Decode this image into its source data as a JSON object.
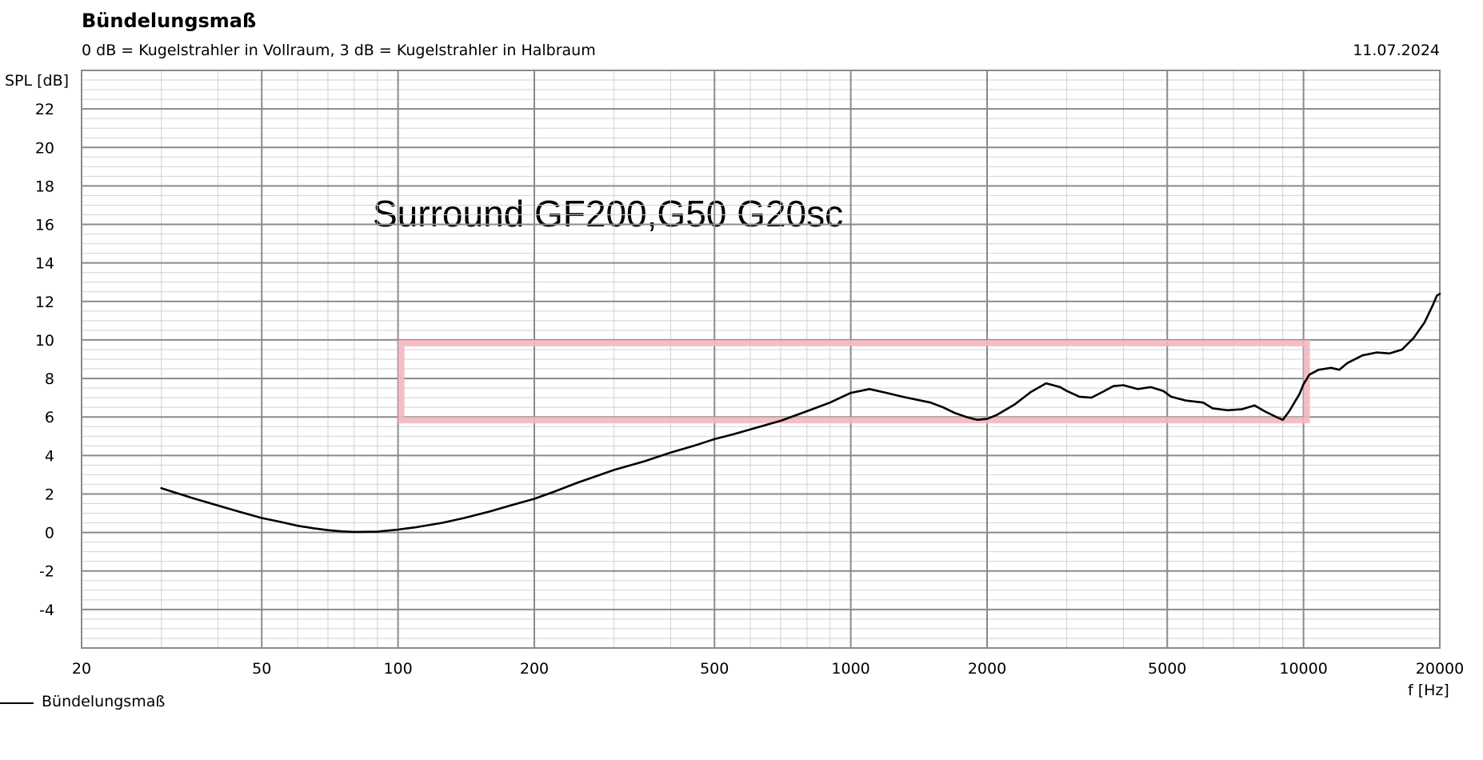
{
  "chart_data": {
    "type": "line",
    "title": "Bündelungsmaß",
    "subtitle": "0 dB = Kugelstrahler in Vollraum, 3 dB = Kugelstrahler in Halbraum",
    "date": "11.07.2024",
    "annotation": "Surround GF200,G50 G20sc",
    "xlabel": "f [Hz]",
    "ylabel": "SPL [dB]",
    "xscale": "log",
    "xlim": [
      20,
      20000
    ],
    "ylim": [
      -6,
      24
    ],
    "grid": true,
    "legend_placement": "bottom-left",
    "x_ticks": [
      20,
      50,
      100,
      200,
      500,
      1000,
      2000,
      5000,
      10000,
      20000
    ],
    "x_tick_labels": [
      "20",
      "50",
      "100",
      "200",
      "500",
      "1000",
      "2000",
      "5000",
      "10000",
      "20000"
    ],
    "y_ticks": [
      -4,
      -2,
      0,
      2,
      4,
      6,
      8,
      10,
      12,
      14,
      16,
      18,
      20,
      22
    ],
    "y_tick_labels": [
      "-4",
      "-2",
      "0",
      "2",
      "4",
      "6",
      "8",
      "10",
      "12",
      "14",
      "16",
      "18",
      "20",
      "22"
    ],
    "target_box": {
      "x": [
        100,
        10000
      ],
      "y": [
        6,
        10
      ],
      "color": "#f4b6bf"
    },
    "series": [
      {
        "name": "Bündelungsmaß",
        "color": "#000000",
        "points": [
          [
            30,
            2.3
          ],
          [
            35,
            1.8
          ],
          [
            40,
            1.4
          ],
          [
            45,
            1.05
          ],
          [
            50,
            0.75
          ],
          [
            55,
            0.55
          ],
          [
            60,
            0.35
          ],
          [
            65,
            0.22
          ],
          [
            70,
            0.12
          ],
          [
            75,
            0.06
          ],
          [
            80,
            0.03
          ],
          [
            90,
            0.04
          ],
          [
            100,
            0.15
          ],
          [
            110,
            0.28
          ],
          [
            125,
            0.5
          ],
          [
            140,
            0.75
          ],
          [
            160,
            1.1
          ],
          [
            180,
            1.45
          ],
          [
            200,
            1.75
          ],
          [
            220,
            2.1
          ],
          [
            250,
            2.6
          ],
          [
            280,
            3.0
          ],
          [
            300,
            3.25
          ],
          [
            350,
            3.7
          ],
          [
            400,
            4.15
          ],
          [
            450,
            4.5
          ],
          [
            500,
            4.85
          ],
          [
            550,
            5.1
          ],
          [
            600,
            5.35
          ],
          [
            700,
            5.8
          ],
          [
            800,
            6.3
          ],
          [
            900,
            6.75
          ],
          [
            1000,
            7.25
          ],
          [
            1100,
            7.45
          ],
          [
            1200,
            7.25
          ],
          [
            1300,
            7.05
          ],
          [
            1500,
            6.75
          ],
          [
            1600,
            6.5
          ],
          [
            1700,
            6.2
          ],
          [
            1800,
            6.0
          ],
          [
            1900,
            5.85
          ],
          [
            2000,
            5.9
          ],
          [
            2100,
            6.1
          ],
          [
            2300,
            6.65
          ],
          [
            2500,
            7.3
          ],
          [
            2700,
            7.75
          ],
          [
            2900,
            7.55
          ],
          [
            3000,
            7.35
          ],
          [
            3200,
            7.05
          ],
          [
            3400,
            7.0
          ],
          [
            3600,
            7.3
          ],
          [
            3800,
            7.6
          ],
          [
            4000,
            7.65
          ],
          [
            4300,
            7.45
          ],
          [
            4600,
            7.55
          ],
          [
            4900,
            7.35
          ],
          [
            5100,
            7.05
          ],
          [
            5500,
            6.85
          ],
          [
            6000,
            6.75
          ],
          [
            6300,
            6.45
          ],
          [
            6800,
            6.35
          ],
          [
            7300,
            6.4
          ],
          [
            7800,
            6.6
          ],
          [
            8200,
            6.3
          ],
          [
            8700,
            6.0
          ],
          [
            9000,
            5.85
          ],
          [
            9300,
            6.3
          ],
          [
            9800,
            7.2
          ],
          [
            10000,
            7.7
          ],
          [
            10300,
            8.2
          ],
          [
            10800,
            8.45
          ],
          [
            11500,
            8.55
          ],
          [
            12000,
            8.45
          ],
          [
            12500,
            8.8
          ],
          [
            13500,
            9.2
          ],
          [
            14500,
            9.35
          ],
          [
            15500,
            9.3
          ],
          [
            16500,
            9.5
          ],
          [
            17500,
            10.1
          ],
          [
            18500,
            10.9
          ],
          [
            19300,
            11.8
          ],
          [
            19700,
            12.3
          ],
          [
            20000,
            12.4
          ]
        ]
      }
    ]
  }
}
